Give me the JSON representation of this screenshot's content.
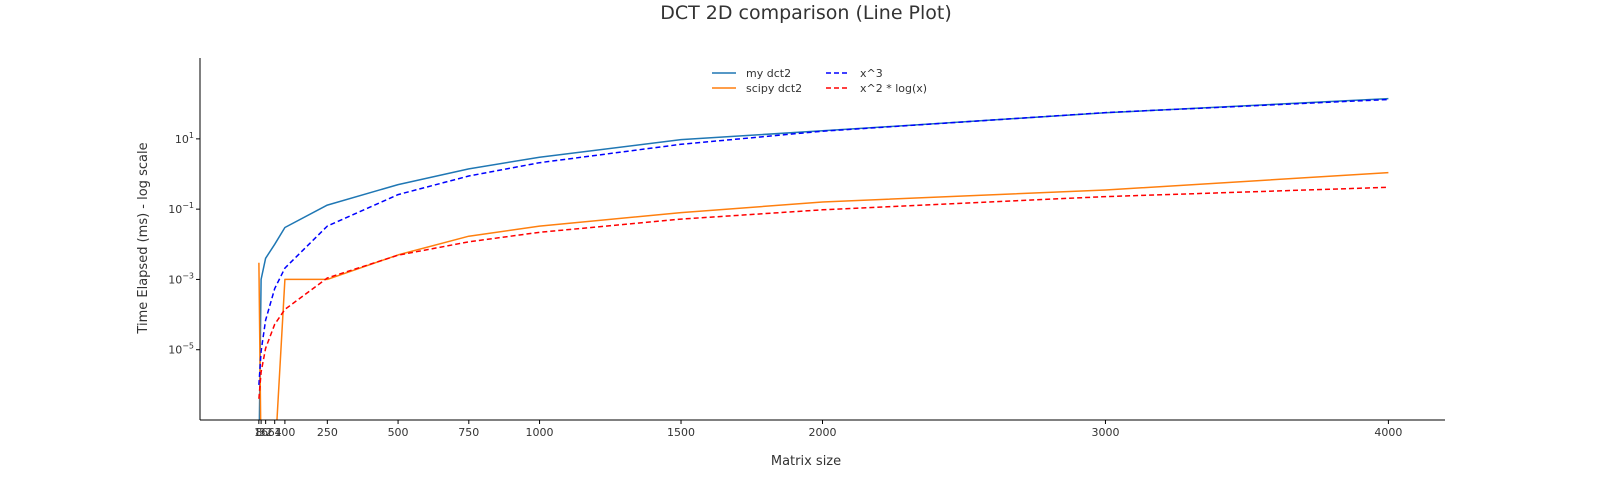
{
  "chart_data": {
    "type": "line",
    "title": "DCT 2D comparison (Line Plot)",
    "xlabel": "Matrix size",
    "ylabel": "Time Elapsed (ms) - log scale",
    "xscale": "linear",
    "yscale": "log",
    "xlim": [
      -200,
      4200
    ],
    "ylim": [
      1e-07,
      2000
    ],
    "xticks": [
      8,
      16,
      32,
      64,
      100,
      250,
      500,
      750,
      1000,
      1500,
      2000,
      3000,
      4000
    ],
    "xtick_labels": [
      "8",
      "16",
      "32",
      "64",
      "100",
      "250",
      "500",
      "750",
      "1000",
      "1500",
      "2000",
      "3000",
      "4000"
    ],
    "yticks": [
      1e-05,
      0.001,
      0.1,
      10
    ],
    "ytick_labels": [
      {
        "base": "10",
        "exp": "−5"
      },
      {
        "base": "10",
        "exp": "−3"
      },
      {
        "base": "10",
        "exp": "−1"
      },
      {
        "base": "10",
        "exp": "1"
      }
    ],
    "grid": false,
    "legend_position": "top-center",
    "x": [
      8,
      16,
      32,
      64,
      100,
      250,
      500,
      750,
      1000,
      1500,
      2000,
      3000,
      4000
    ],
    "series": [
      {
        "name": "my dct2",
        "color": "#1f77b4",
        "style": "solid",
        "values": [
          0.0,
          0.001,
          0.004,
          0.01,
          0.03,
          0.13,
          0.5,
          1.4,
          3.0,
          9.5,
          17.0,
          55.0,
          140.0
        ]
      },
      {
        "name": "scipy dct2",
        "color": "#ff7f0e",
        "style": "solid",
        "values": [
          0.003,
          0.0,
          0.0,
          0.0,
          0.001,
          0.001,
          0.005,
          0.017,
          0.033,
          0.08,
          0.16,
          0.35,
          1.1
        ]
      },
      {
        "name": "x^3",
        "color": "#0000ff",
        "style": "dashed",
        "formula": "x^3 scaled",
        "values": [
          1e-06,
          9e-06,
          6.9e-05,
          0.00055,
          0.0021,
          0.033,
          0.26,
          0.88,
          2.1,
          7.0,
          16.5,
          56.0,
          132.0
        ]
      },
      {
        "name": "x^2 * log(x)",
        "color": "#ff0000",
        "style": "dashed",
        "formula": "x^2 log(x) scaled",
        "values": [
          4e-07,
          2.3e-06,
          1.1e-05,
          5.3e-05,
          0.00014,
          0.0011,
          0.0049,
          0.0118,
          0.0219,
          0.052,
          0.096,
          0.228,
          0.419
        ]
      }
    ]
  }
}
